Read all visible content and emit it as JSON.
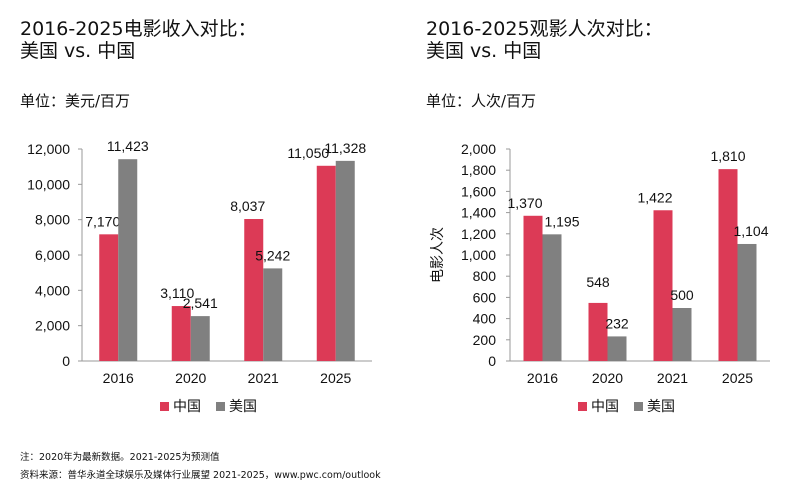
{
  "colors": {
    "china": "#dc3a56",
    "usa": "#808080"
  },
  "charts": [
    {
      "id": "revenue",
      "title": "2016-2025电影收入对比：\n美国 vs. 中国",
      "unit_label": "单位：美元/百万"
    },
    {
      "id": "admissions",
      "title": "2016-2025观影人次对比：\n美国 vs. 中国",
      "unit_label": "单位：人次/百万"
    }
  ],
  "footer": {
    "note": "注：2020年为最新数据。2021-2025为预测值",
    "source": "资料来源：普华永道全球娱乐及媒体行业展望 2021-2025，www.pwc.com/outlook"
  },
  "chart_data": [
    {
      "type": "bar",
      "title": "2016-2025电影收入对比：美国 vs. 中国",
      "categories": [
        "2016",
        "2020",
        "2021",
        "2025"
      ],
      "series": [
        {
          "name": "中国",
          "values": [
            7170,
            3110,
            8037,
            11050
          ],
          "labels": [
            "7,170",
            "3,110",
            "8,037",
            "11,050"
          ]
        },
        {
          "name": "美国",
          "values": [
            11423,
            2541,
            5242,
            11328
          ],
          "labels": [
            "11,423",
            "2,541",
            "5,242",
            "11,328"
          ]
        }
      ],
      "ylim": [
        0,
        12000
      ],
      "yticks": [
        0,
        2000,
        4000,
        6000,
        8000,
        10000,
        12000
      ],
      "ytick_labels": [
        "0",
        "2,000",
        "4,000",
        "6,000",
        "8,000",
        "10,000",
        "12,000"
      ],
      "xlabel": "",
      "ylabel": "",
      "legend": "bottom"
    },
    {
      "type": "bar",
      "title": "2016-2025观影人次对比：美国 vs. 中国",
      "categories": [
        "2016",
        "2020",
        "2021",
        "2025"
      ],
      "series": [
        {
          "name": "中国",
          "values": [
            1370,
            548,
            1422,
            1810
          ],
          "labels": [
            "1,370",
            "548",
            "1,422",
            "1,810"
          ]
        },
        {
          "name": "美国",
          "values": [
            1195,
            232,
            500,
            1104
          ],
          "labels": [
            "1,195",
            "232",
            "500",
            "1,104"
          ]
        }
      ],
      "ylim": [
        0,
        2000
      ],
      "yticks": [
        0,
        200,
        400,
        600,
        800,
        1000,
        1200,
        1400,
        1600,
        1800,
        2000
      ],
      "ytick_labels": [
        "0",
        "200",
        "400",
        "600",
        "800",
        "1,000",
        "1,200",
        "1,400",
        "1,600",
        "1,800",
        "2,000"
      ],
      "xlabel": "",
      "ylabel": "电影人次",
      "legend": "bottom"
    }
  ]
}
